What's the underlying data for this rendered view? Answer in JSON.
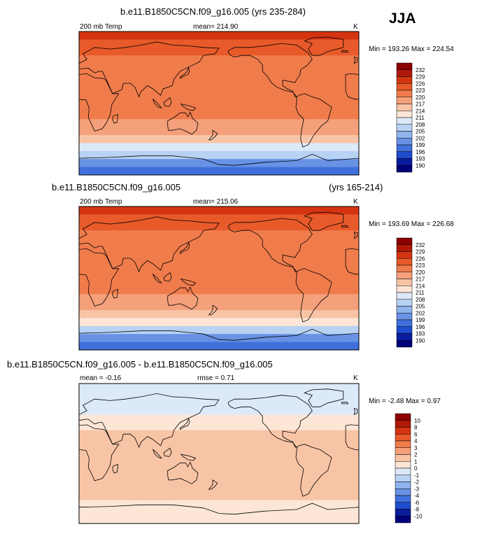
{
  "season": "JJA",
  "panels": [
    {
      "title": "b.e11.B1850C5CN.f09_g16.005 (yrs 235-284)",
      "title_right": "",
      "left_label": "200 mb Temp",
      "center_label": "mean= 214.90",
      "center_label2": "",
      "units": "K",
      "minmax": "Min = 193.26 Max = 224.54",
      "levels": [
        "232",
        "229",
        "226",
        "223",
        "220",
        "217",
        "214",
        "211",
        "208",
        "205",
        "202",
        "199",
        "196",
        "193",
        "190"
      ]
    },
    {
      "title": "b.e11.B1850C5CN.f09_g16.005",
      "title_right": "(yrs 165-214)",
      "left_label": "200 mb Temp",
      "center_label": "mean= 215.06",
      "center_label2": "",
      "units": "K",
      "minmax": "Min = 193.69 Max = 226.68",
      "levels": [
        "232",
        "229",
        "226",
        "223",
        "220",
        "217",
        "214",
        "211",
        "208",
        "205",
        "202",
        "199",
        "196",
        "193",
        "190"
      ]
    },
    {
      "title": "b.e11.B1850C5CN.f09_g16.005 - b.e11.B1850C5CN.f09_g16.005",
      "title_right": "",
      "left_label": "mean = -0.16",
      "center_label": "rmse = 0.71",
      "center_label2": "",
      "units": "K",
      "minmax": "Min = -2.48 Max = 0.97",
      "levels": [
        "10",
        "8",
        "6",
        "4",
        "3",
        "2",
        "1",
        "0",
        "-1",
        "-2",
        "-3",
        "-4",
        "-6",
        "-8",
        "-10"
      ]
    }
  ],
  "colors": {
    "scale": [
      "#8b0000",
      "#b01808",
      "#d43412",
      "#e85a2a",
      "#f07c4c",
      "#f4a07a",
      "#f8c4a6",
      "#fde6d6",
      "#dce9f8",
      "#b8d2f4",
      "#8fb3ec",
      "#6892e4",
      "#4070dc",
      "#1e4ccc",
      "#0a1c9e"
    ]
  },
  "chart_data": [
    {
      "type": "heatmap",
      "title": "b.e11.B1850C5CN.f09_g16.005 (yrs 235-284)",
      "variable": "200 mb Temp",
      "units": "K",
      "mean": 214.9,
      "min": 193.26,
      "max": 224.54,
      "levels": [
        190,
        193,
        196,
        199,
        202,
        205,
        208,
        211,
        214,
        217,
        220,
        223,
        226,
        229,
        232
      ],
      "zonal_bands": [
        {
          "lat": 90,
          "value": 224
        },
        {
          "lat": 80,
          "value": 223
        },
        {
          "lat": 70,
          "value": 221
        },
        {
          "lat": 60,
          "value": 219
        },
        {
          "lat": 50,
          "value": 219
        },
        {
          "lat": 40,
          "value": 220
        },
        {
          "lat": 30,
          "value": 219
        },
        {
          "lat": 20,
          "value": 217
        },
        {
          "lat": 10,
          "value": 218
        },
        {
          "lat": 0,
          "value": 218
        },
        {
          "lat": -10,
          "value": 218
        },
        {
          "lat": -20,
          "value": 217
        },
        {
          "lat": -30,
          "value": 215
        },
        {
          "lat": -40,
          "value": 213
        },
        {
          "lat": -50,
          "value": 210
        },
        {
          "lat": -60,
          "value": 205
        },
        {
          "lat": -70,
          "value": 199
        },
        {
          "lat": -80,
          "value": 195
        },
        {
          "lat": -90,
          "value": 194
        }
      ]
    },
    {
      "type": "heatmap",
      "title": "b.e11.B1850C5CN.f09_g16.005 (yrs 165-214)",
      "variable": "200 mb Temp",
      "units": "K",
      "mean": 215.06,
      "min": 193.69,
      "max": 226.68,
      "levels": [
        190,
        193,
        196,
        199,
        202,
        205,
        208,
        211,
        214,
        217,
        220,
        223,
        226,
        229,
        232
      ],
      "zonal_bands": [
        {
          "lat": 90,
          "value": 225
        },
        {
          "lat": 80,
          "value": 223
        },
        {
          "lat": 70,
          "value": 221
        },
        {
          "lat": 60,
          "value": 219
        },
        {
          "lat": 50,
          "value": 219
        },
        {
          "lat": 40,
          "value": 220
        },
        {
          "lat": 30,
          "value": 219
        },
        {
          "lat": 20,
          "value": 217
        },
        {
          "lat": 10,
          "value": 218
        },
        {
          "lat": 0,
          "value": 218
        },
        {
          "lat": -10,
          "value": 218
        },
        {
          "lat": -20,
          "value": 217
        },
        {
          "lat": -30,
          "value": 215
        },
        {
          "lat": -40,
          "value": 213
        },
        {
          "lat": -50,
          "value": 211
        },
        {
          "lat": -60,
          "value": 206
        },
        {
          "lat": -70,
          "value": 200
        },
        {
          "lat": -80,
          "value": 195
        },
        {
          "lat": -90,
          "value": 194
        }
      ]
    },
    {
      "type": "heatmap",
      "title": "b.e11.B1850C5CN.f09_g16.005 - b.e11.B1850C5CN.f09_g16.005",
      "units": "K",
      "mean": -0.16,
      "rmse": 0.71,
      "min": -2.48,
      "max": 0.97,
      "levels": [
        -10,
        -8,
        -6,
        -4,
        -3,
        -2,
        -1,
        0,
        1,
        2,
        3,
        4,
        6,
        8,
        10
      ],
      "zonal_bands": [
        {
          "lat": 90,
          "value": -1.5
        },
        {
          "lat": 80,
          "value": -1.5
        },
        {
          "lat": 70,
          "value": -1.5
        },
        {
          "lat": 60,
          "value": -1.5
        },
        {
          "lat": 50,
          "value": -1.5
        },
        {
          "lat": 40,
          "value": -0.5
        },
        {
          "lat": 30,
          "value": -0.5
        },
        {
          "lat": 20,
          "value": 0.5
        },
        {
          "lat": 10,
          "value": 0.5
        },
        {
          "lat": 0,
          "value": 0.5
        },
        {
          "lat": -10,
          "value": 0.5
        },
        {
          "lat": -20,
          "value": 0.5
        },
        {
          "lat": -30,
          "value": 0.5
        },
        {
          "lat": -40,
          "value": 0.5
        },
        {
          "lat": -50,
          "value": 0.5
        },
        {
          "lat": -60,
          "value": -0.5
        },
        {
          "lat": -70,
          "value": -0.5
        },
        {
          "lat": -80,
          "value": -0.5
        },
        {
          "lat": -90,
          "value": -0.5
        }
      ]
    }
  ]
}
